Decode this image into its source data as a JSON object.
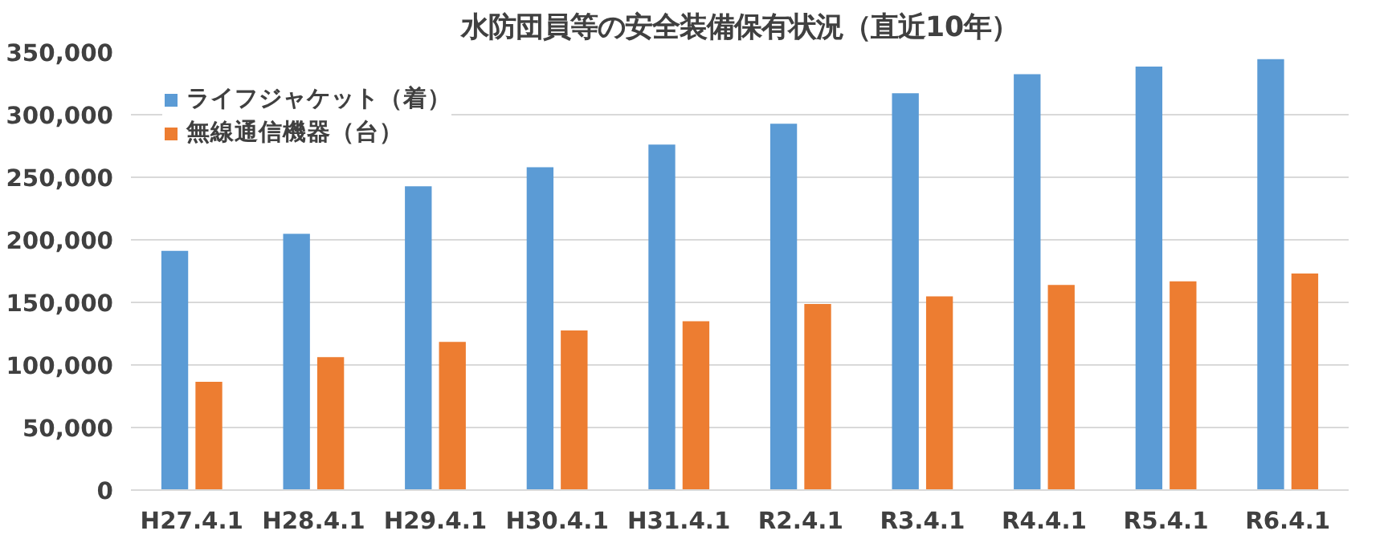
{
  "chart_data": {
    "type": "bar",
    "title": "水防団員等の安全装備保有状況（直近10年）",
    "categories": [
      "H27.4.1",
      "H28.4.1",
      "H29.4.1",
      "H30.4.1",
      "H31.4.1",
      "R2.4.1",
      "R3.4.1",
      "R4.4.1",
      "R5.4.1",
      "R6.4.1"
    ],
    "series": [
      {
        "name": "ライフジャケット（着）",
        "color": "#5b9bd5",
        "values": [
          191200,
          204800,
          242800,
          258000,
          276200,
          292800,
          317100,
          332300,
          338400,
          344400
        ]
      },
      {
        "name": "無線通信機器（台）",
        "color": "#ed7d31",
        "values": [
          86500,
          106200,
          118400,
          127500,
          135000,
          148700,
          154800,
          163900,
          166900,
          173000
        ]
      }
    ],
    "ylim": [
      0,
      350000
    ],
    "yticks": [
      {
        "value": 0,
        "label": "0"
      },
      {
        "value": 50000,
        "label": "50,000"
      },
      {
        "value": 100000,
        "label": "100,000"
      },
      {
        "value": 150000,
        "label": "150,000"
      },
      {
        "value": 200000,
        "label": "200,000"
      },
      {
        "value": 250000,
        "label": "250,000"
      },
      {
        "value": 300000,
        "label": "300,000"
      },
      {
        "value": 350000,
        "label": "350,000"
      }
    ],
    "grid": "y",
    "legend": "top left"
  }
}
